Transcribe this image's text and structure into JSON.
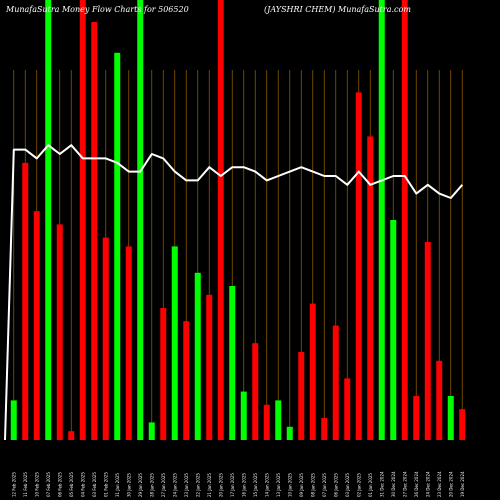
{
  "chart_data": {
    "type": "bar",
    "title_left": "MunafaSutra  Money Flow  Charts for 506520",
    "title_right": "(JAYSHRI CHEM) MunafaSutra.com",
    "ylim": [
      0,
      100
    ],
    "colors": {
      "up": "#00ff00",
      "down": "#ff0000",
      "line": "#ffffff",
      "grid": "#8b5a00",
      "background": "#000000"
    },
    "categories": [
      "12 Feb 2025",
      "11 Feb 2025",
      "10 Feb 2025",
      "07 Feb 2025",
      "06 Feb 2025",
      "05 Feb 2025",
      "04 Feb 2025",
      "03 Feb 2025",
      "01 Feb 2025",
      "31 Jan 2025",
      "30 Jan 2025",
      "29 Jan 2025",
      "28 Jan 2025",
      "27 Jan 2025",
      "24 Jan 2025",
      "23 Jan 2025",
      "22 Jan 2025",
      "21 Jan 2025",
      "20 Jan 2025",
      "17 Jan 2025",
      "16 Jan 2025",
      "15 Jan 2025",
      "14 Jan 2025",
      "13 Jan 2025",
      "10 Jan 2025",
      "09 Jan 2025",
      "08 Jan 2025",
      "07 Jan 2025",
      "06 Jan 2025",
      "03 Jan 2025",
      "02 Jan 2025",
      "01 Jan 2025",
      "31 Dec 2024",
      "30 Dec 2024",
      "27 Dec 2024",
      "26 Dec 2024",
      "24 Dec 2024",
      "23 Dec 2024",
      "20 Dec 2024",
      "19 Dec 2024"
    ],
    "bars": [
      {
        "value": 9,
        "dir": "up"
      },
      {
        "value": 63,
        "dir": "down"
      },
      {
        "value": 52,
        "dir": "down"
      },
      {
        "value": 100,
        "dir": "up"
      },
      {
        "value": 49,
        "dir": "down"
      },
      {
        "value": 2,
        "dir": "down"
      },
      {
        "value": 100,
        "dir": "down"
      },
      {
        "value": 95,
        "dir": "down"
      },
      {
        "value": 46,
        "dir": "down"
      },
      {
        "value": 88,
        "dir": "up"
      },
      {
        "value": 44,
        "dir": "down"
      },
      {
        "value": 100,
        "dir": "up"
      },
      {
        "value": 4,
        "dir": "up"
      },
      {
        "value": 30,
        "dir": "down"
      },
      {
        "value": 44,
        "dir": "up"
      },
      {
        "value": 27,
        "dir": "down"
      },
      {
        "value": 38,
        "dir": "up"
      },
      {
        "value": 33,
        "dir": "down"
      },
      {
        "value": 100,
        "dir": "down"
      },
      {
        "value": 35,
        "dir": "up"
      },
      {
        "value": 11,
        "dir": "up"
      },
      {
        "value": 22,
        "dir": "down"
      },
      {
        "value": 8,
        "dir": "down"
      },
      {
        "value": 9,
        "dir": "up"
      },
      {
        "value": 3,
        "dir": "up"
      },
      {
        "value": 20,
        "dir": "down"
      },
      {
        "value": 31,
        "dir": "down"
      },
      {
        "value": 5,
        "dir": "down"
      },
      {
        "value": 26,
        "dir": "down"
      },
      {
        "value": 14,
        "dir": "down"
      },
      {
        "value": 79,
        "dir": "down"
      },
      {
        "value": 69,
        "dir": "down"
      },
      {
        "value": 100,
        "dir": "up"
      },
      {
        "value": 50,
        "dir": "up"
      },
      {
        "value": 100,
        "dir": "down"
      },
      {
        "value": 10,
        "dir": "down"
      },
      {
        "value": 45,
        "dir": "down"
      },
      {
        "value": 18,
        "dir": "down"
      },
      {
        "value": 10,
        "dir": "up"
      },
      {
        "value": 7,
        "dir": "down"
      }
    ],
    "line": [
      66,
      66,
      64,
      67,
      65,
      67,
      64,
      64,
      64,
      63,
      61,
      61,
      65,
      64,
      61,
      59,
      59,
      62,
      60,
      62,
      62,
      61,
      59,
      60,
      61,
      62,
      61,
      60,
      60,
      58,
      61,
      58,
      59,
      60,
      60,
      56,
      58,
      56,
      55,
      58
    ],
    "line_start": 0
  }
}
